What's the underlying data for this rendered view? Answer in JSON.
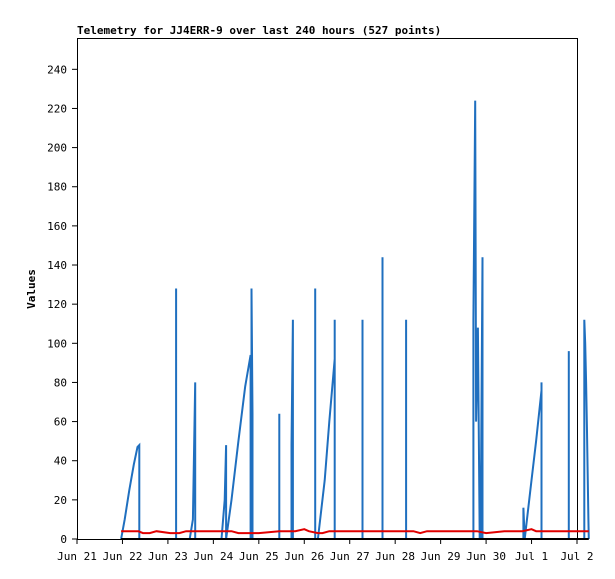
{
  "chart_data": {
    "type": "line",
    "title": "Telemetry for JJ4ERR-9 over last 240 hours (527 points)",
    "xlabel": "",
    "ylabel": "Values",
    "x_ticks": [
      "Jun 21",
      "Jun 22",
      "Jun 23",
      "Jun 24",
      "Jun 25",
      "Jun 26",
      "Jun 27",
      "Jun 28",
      "Jun 29",
      "Jun 30",
      "Jul 1",
      "Jul 2"
    ],
    "xlim_days": [
      0,
      11
    ],
    "ylim": [
      0,
      256
    ],
    "y_ticks": [
      0,
      20,
      40,
      60,
      80,
      100,
      120,
      140,
      160,
      180,
      200,
      220,
      240
    ],
    "grid": false,
    "background": "#ffffff",
    "series": [
      {
        "color": "#1f6fbf",
        "points": [
          [
            0.97,
            0
          ],
          [
            1.05,
            10
          ],
          [
            1.15,
            25
          ],
          [
            1.25,
            38
          ],
          [
            1.33,
            47
          ],
          [
            1.37,
            48
          ],
          [
            1.37,
            0
          ],
          [
            2.18,
            0
          ],
          [
            2.18,
            128
          ],
          [
            2.18,
            0
          ],
          [
            2.48,
            0
          ],
          [
            2.55,
            10
          ],
          [
            2.6,
            80
          ],
          [
            2.6,
            0
          ],
          [
            3.18,
            0
          ],
          [
            3.25,
            20
          ],
          [
            3.28,
            48
          ],
          [
            3.28,
            0
          ],
          [
            3.28,
            0
          ],
          [
            3.4,
            20
          ],
          [
            3.55,
            50
          ],
          [
            3.7,
            78
          ],
          [
            3.82,
            94
          ],
          [
            3.82,
            0
          ],
          [
            3.84,
            0
          ],
          [
            3.84,
            128
          ],
          [
            3.86,
            64
          ],
          [
            3.86,
            0
          ],
          [
            4.45,
            0
          ],
          [
            4.45,
            64
          ],
          [
            4.45,
            0
          ],
          [
            4.72,
            0
          ],
          [
            4.72,
            48
          ],
          [
            4.75,
            112
          ],
          [
            4.75,
            0
          ],
          [
            5.24,
            0
          ],
          [
            5.24,
            128
          ],
          [
            5.24,
            0
          ],
          [
            5.3,
            0
          ],
          [
            5.45,
            30
          ],
          [
            5.55,
            60
          ],
          [
            5.67,
            92
          ],
          [
            5.67,
            112
          ],
          [
            5.67,
            0
          ],
          [
            6.28,
            0
          ],
          [
            6.28,
            112
          ],
          [
            6.28,
            0
          ],
          [
            6.72,
            0
          ],
          [
            6.72,
            144
          ],
          [
            6.72,
            0
          ],
          [
            7.24,
            0
          ],
          [
            7.24,
            112
          ],
          [
            7.24,
            0
          ],
          [
            8.72,
            0
          ],
          [
            8.72,
            112
          ],
          [
            8.76,
            224
          ],
          [
            8.78,
            60
          ],
          [
            8.82,
            108
          ],
          [
            8.86,
            0
          ],
          [
            8.88,
            0
          ],
          [
            8.92,
            144
          ],
          [
            8.92,
            0
          ],
          [
            9.82,
            0
          ],
          [
            9.82,
            16
          ],
          [
            9.85,
            0
          ],
          [
            9.85,
            0
          ],
          [
            10.0,
            30
          ],
          [
            10.1,
            50
          ],
          [
            10.22,
            76
          ],
          [
            10.22,
            80
          ],
          [
            10.22,
            0
          ],
          [
            10.82,
            0
          ],
          [
            10.82,
            96
          ],
          [
            10.82,
            0
          ],
          [
            11.16,
            0
          ],
          [
            11.16,
            112
          ],
          [
            11.18,
            100
          ],
          [
            11.2,
            80
          ],
          [
            11.22,
            55
          ],
          [
            11.25,
            10
          ],
          [
            11.26,
            0
          ]
        ]
      },
      {
        "color": "#e00000",
        "points": [
          [
            0.97,
            4
          ],
          [
            1.35,
            4
          ],
          [
            1.45,
            3
          ],
          [
            1.6,
            3
          ],
          [
            1.75,
            4
          ],
          [
            2.05,
            3
          ],
          [
            2.25,
            3
          ],
          [
            2.4,
            4
          ],
          [
            3.0,
            4
          ],
          [
            3.4,
            4
          ],
          [
            3.55,
            3
          ],
          [
            4.0,
            3
          ],
          [
            4.45,
            4
          ],
          [
            4.8,
            4
          ],
          [
            5.0,
            5
          ],
          [
            5.1,
            4
          ],
          [
            5.3,
            3
          ],
          [
            5.4,
            3
          ],
          [
            5.55,
            4
          ],
          [
            6.1,
            4
          ],
          [
            7.0,
            4
          ],
          [
            7.4,
            4
          ],
          [
            7.55,
            3
          ],
          [
            7.7,
            4
          ],
          [
            8.0,
            4
          ],
          [
            8.4,
            4
          ],
          [
            8.8,
            4
          ],
          [
            9.0,
            3
          ],
          [
            9.4,
            4
          ],
          [
            9.8,
            4
          ],
          [
            10.0,
            5
          ],
          [
            10.1,
            4
          ],
          [
            10.4,
            4
          ],
          [
            11.0,
            4
          ],
          [
            11.26,
            4
          ]
        ]
      },
      {
        "color": "#000000",
        "points": [
          [
            0.97,
            0
          ],
          [
            11.26,
            0
          ]
        ]
      }
    ]
  }
}
